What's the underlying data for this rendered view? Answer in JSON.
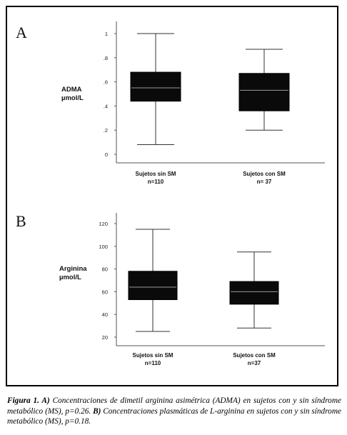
{
  "chart_data": [
    {
      "type": "box",
      "panel_label": "A",
      "ylabel_line1": "ADMA",
      "ylabel_line2": "µmol/L",
      "yticks": [
        "1",
        ".8",
        ".6",
        ".4",
        ".2",
        "0"
      ],
      "ylim": [
        0,
        1.05
      ],
      "categories": [
        {
          "label_line1": "Sujetos sin SM",
          "label_line2": "n=110",
          "min": 0.08,
          "q1": 0.44,
          "median": 0.55,
          "q3": 0.68,
          "max": 1.0
        },
        {
          "label_line1": "Sujetos con SM",
          "label_line2": "n= 37",
          "min": 0.2,
          "q1": 0.36,
          "median": 0.53,
          "q3": 0.67,
          "max": 0.87
        }
      ]
    },
    {
      "type": "box",
      "panel_label": "B",
      "ylabel_line1": "Arginina",
      "ylabel_line2": "µmol/L",
      "yticks": [
        "120",
        "100",
        "80",
        "60",
        "40",
        "20"
      ],
      "ylim": [
        20,
        125
      ],
      "categories": [
        {
          "label_line1": "Sujetos sin SM",
          "label_line2": "n=110",
          "min": 25,
          "q1": 53,
          "median": 64,
          "q3": 78,
          "max": 115
        },
        {
          "label_line1": "Sujetos con SM",
          "label_line2": "n=37",
          "min": 28,
          "q1": 49,
          "median": 60,
          "q3": 69,
          "max": 95
        }
      ]
    }
  ],
  "caption": {
    "lead": "Figura 1. A)",
    "part1": " Concentraciones de dimetil arginina asimétrica  (ADMA) en sujetos con y sin síndrome metabólico (MS), p=0.26. ",
    "lead_b": "B)",
    "part2": " Concentraciones plasmáticas de L-arginina  en sujetos con y sin síndrome metabólico (MS), p=0.18."
  }
}
